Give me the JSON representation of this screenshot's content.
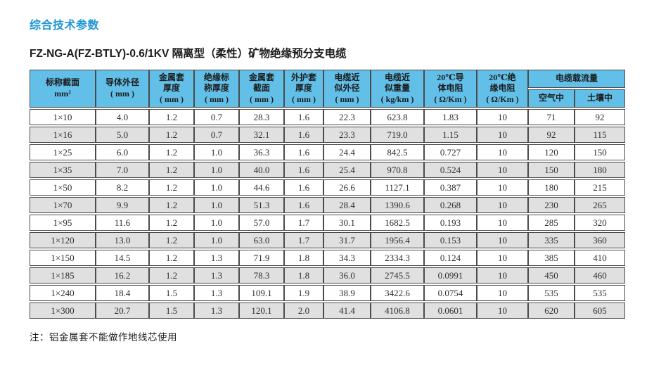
{
  "page": {
    "title": "综合技术参数",
    "subtitle": "FZ-NG-A(FZ-BTLY)-0.6/1KV 隔离型（柔性）矿物绝缘预分支电缆",
    "note": "注：铝金属套不能做作地线芯使用"
  },
  "colors": {
    "title_blue": "#1E97D5",
    "header_bg": "#62BFE8",
    "row_alt_bg": "#E0E0E0",
    "border": "#4B4B4B"
  },
  "table": {
    "columns": [
      {
        "label": "标称截面\nmm²"
      },
      {
        "label": "导体外径\n( mm )"
      },
      {
        "label": "金属套\n厚度\n( mm )"
      },
      {
        "label": "绝缘标\n称厚度\n( mm )"
      },
      {
        "label": "金属套\n截面\n( mm )"
      },
      {
        "label": "外护套\n厚度\n( mm )"
      },
      {
        "label": "电缆近\n似外径\n( mm )"
      },
      {
        "label": "电缆近\n似重量\n( kg/km )"
      },
      {
        "label": "20℃导\n体电阻\n( Ω/Km )"
      },
      {
        "label": "20℃绝\n缘电阻\n( Ω/Km )"
      }
    ],
    "carry_group": {
      "label": "电缆载流量",
      "sub": [
        "空气中",
        "土壤中"
      ]
    },
    "rows": [
      [
        "1×10",
        "4.0",
        "1.2",
        "0.7",
        "28.3",
        "1.6",
        "22.3",
        "623.8",
        "1.83",
        "10",
        "71",
        "92"
      ],
      [
        "1×16",
        "5.0",
        "1.2",
        "0.7",
        "32.1",
        "1.6",
        "23.3",
        "719.0",
        "1.15",
        "10",
        "92",
        "115"
      ],
      [
        "1×25",
        "6.0",
        "1.2",
        "1.0",
        "36.3",
        "1.6",
        "24.4",
        "842.5",
        "0.727",
        "10",
        "120",
        "150"
      ],
      [
        "1×35",
        "7.0",
        "1.2",
        "1.0",
        "40.0",
        "1.6",
        "25.4",
        "970.8",
        "0.524",
        "10",
        "150",
        "180"
      ],
      [
        "1×50",
        "8.2",
        "1.2",
        "1.0",
        "44.6",
        "1.6",
        "26.6",
        "1127.1",
        "0.387",
        "10",
        "180",
        "215"
      ],
      [
        "1×70",
        "9.9",
        "1.2",
        "1.0",
        "51.3",
        "1.6",
        "28.4",
        "1390.6",
        "0.268",
        "10",
        "230",
        "265"
      ],
      [
        "1×95",
        "11.6",
        "1.2",
        "1.0",
        "57.0",
        "1.7",
        "30.1",
        "1682.5",
        "0.193",
        "10",
        "285",
        "320"
      ],
      [
        "1×120",
        "13.0",
        "1.2",
        "1.0",
        "63.0",
        "1.7",
        "31.7",
        "1956.4",
        "0.153",
        "10",
        "335",
        "360"
      ],
      [
        "1×150",
        "14.5",
        "1.2",
        "1.3",
        "71.9",
        "1.8",
        "34.3",
        "2334.3",
        "0.124",
        "10",
        "385",
        "410"
      ],
      [
        "1×185",
        "16.2",
        "1.2",
        "1.3",
        "78.3",
        "1.8",
        "36.0",
        "2745.5",
        "0.0991",
        "10",
        "450",
        "460"
      ],
      [
        "1×240",
        "18.4",
        "1.5",
        "1.3",
        "109.1",
        "1.9",
        "38.9",
        "3422.6",
        "0.0754",
        "10",
        "535",
        "535"
      ],
      [
        "1×300",
        "20.7",
        "1.5",
        "1.3",
        "120.1",
        "2.0",
        "41.4",
        "4106.8",
        "0.0601",
        "10",
        "620",
        "605"
      ]
    ]
  }
}
